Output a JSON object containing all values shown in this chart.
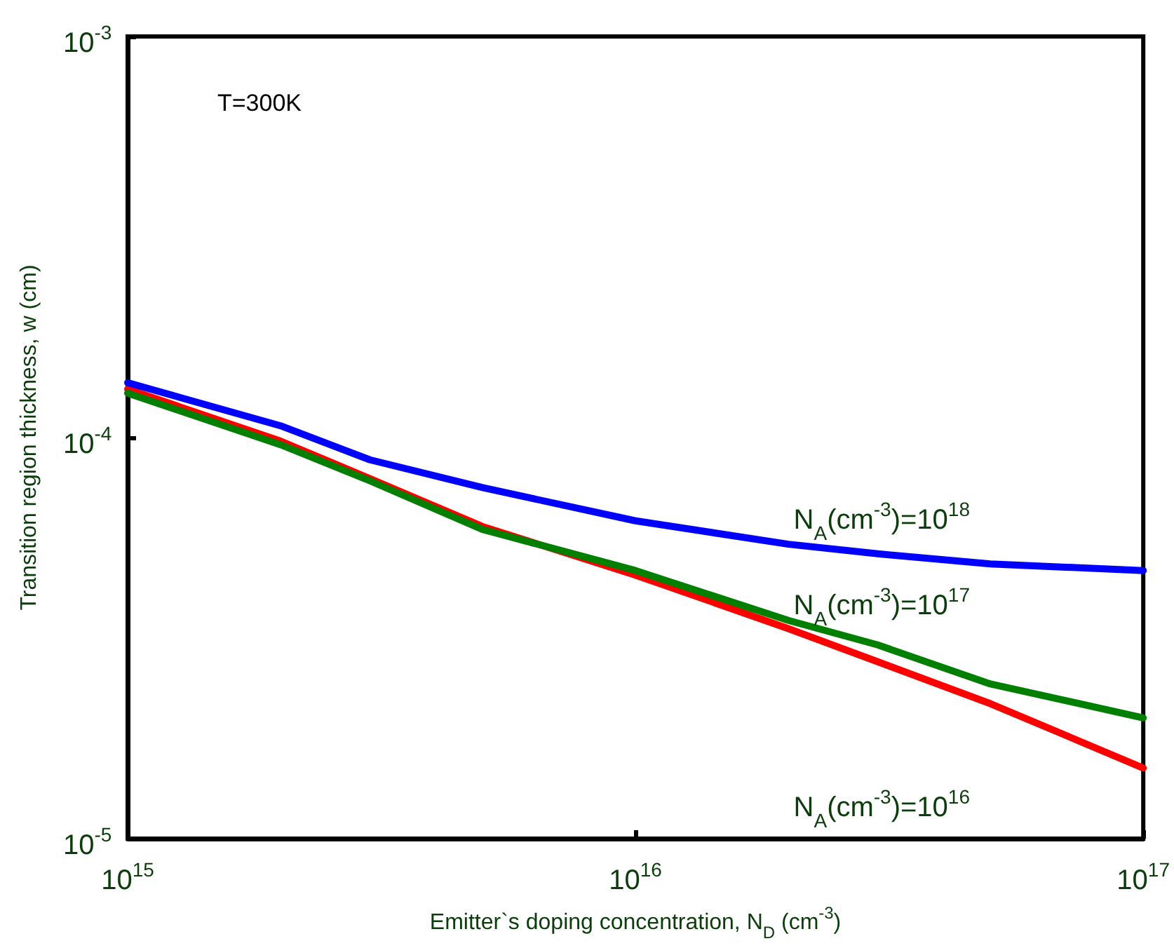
{
  "chart_data": {
    "type": "line",
    "xlabel": "Emitter`s doping concentration, N$_{D}$ (cm$^{-3}$)",
    "ylabel": "Transition region thickness, w (cm)",
    "annotations": [
      "T=300K"
    ],
    "log": "xy",
    "xlim": [
      1000000000000000.0,
      1e+17
    ],
    "xticks": [
      {
        "value": 1000000000000000.0,
        "label": "10$^{15}$"
      },
      {
        "value": 1e+16,
        "label": "10$^{16}$"
      },
      {
        "value": 1e+17,
        "label": "10$^{17}$"
      }
    ],
    "ylim": [
      1e-05,
      0.001
    ],
    "yticks": [
      {
        "value": 1e-05,
        "label": "10$^{-5}$"
      },
      {
        "value": 0.0001,
        "label": "10$^{-4}$"
      },
      {
        "value": 0.001,
        "label": "10$^{-3}$"
      }
    ],
    "grid": false,
    "legend": false,
    "marker": "none",
    "line_style": "solid",
    "x": [
      1000000000000000.0,
      2000000000000000.0,
      3000000000000000.0,
      5000000000000000.0,
      1e+16,
      2e+16,
      3e+16,
      5e+16,
      1e+17
    ],
    "series": [
      {
        "name": "N$_{A}$(cm$^{-3}$)=10$^{18}$",
        "color": "#0000ff",
        "values": [
          0.000137,
          0.000107,
          8.8e-05,
          7.5e-05,
          6.2e-05,
          5.42e-05,
          5.13e-05,
          4.84e-05,
          4.66e-05
        ]
      },
      {
        "name": "N$_{A}$(cm$^{-3}$)=10$^{17}$",
        "color": "#007f00",
        "values": [
          0.000129,
          9.6e-05,
          7.8e-05,
          5.9e-05,
          4.66e-05,
          3.5e-05,
          3.04e-05,
          2.43e-05,
          2e-05
        ]
      },
      {
        "name": "N$_{A}$(cm$^{-3}$)=10$^{16}$",
        "color": "#ff0000",
        "values": [
          0.000132,
          9.8e-05,
          7.9e-05,
          6e-05,
          4.54e-05,
          3.34e-05,
          2.76e-05,
          2.17e-05,
          1.5e-05
        ]
      }
    ]
  }
}
